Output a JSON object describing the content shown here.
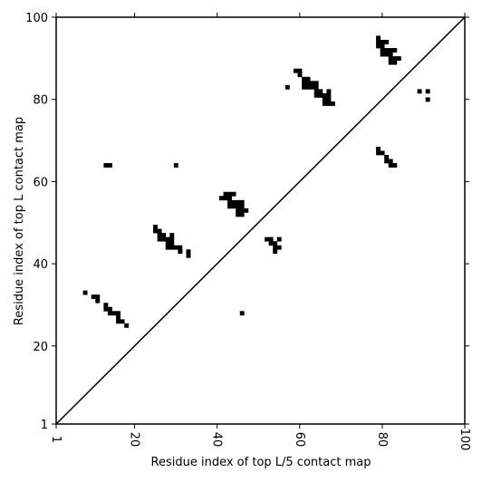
{
  "chart_data": {
    "type": "heatmap",
    "title": "",
    "xlabel": "Residue index of top L/5 contact map",
    "ylabel": "Residue index of top L contact map",
    "xlim": [
      1,
      100
    ],
    "ylim": [
      1,
      100
    ],
    "xticks": [
      1,
      20,
      40,
      60,
      80,
      100
    ],
    "yticks": [
      1,
      20,
      40,
      60,
      80,
      100
    ],
    "xtick_labels": [
      "1",
      "20",
      "40",
      "60",
      "80",
      "100"
    ],
    "ytick_labels": [
      "1",
      "20",
      "40",
      "60",
      "80",
      "100"
    ],
    "grid": false,
    "cell_color": "#000000",
    "diagonal": {
      "from": [
        1,
        1
      ],
      "to": [
        100,
        100
      ]
    },
    "cells_below_diagonal": [
      [
        8,
        33
      ],
      [
        10,
        32
      ],
      [
        11,
        32
      ],
      [
        11,
        31
      ],
      [
        13,
        30
      ],
      [
        13,
        29
      ],
      [
        14,
        29
      ],
      [
        14,
        28
      ],
      [
        15,
        28
      ],
      [
        16,
        28
      ],
      [
        16,
        27
      ],
      [
        16,
        26
      ],
      [
        17,
        26
      ],
      [
        18,
        25
      ],
      [
        25,
        49
      ],
      [
        25,
        48
      ],
      [
        26,
        48
      ],
      [
        26,
        47
      ],
      [
        26,
        46
      ],
      [
        27,
        47
      ],
      [
        27,
        46
      ],
      [
        28,
        46
      ],
      [
        28,
        45
      ],
      [
        28,
        44
      ],
      [
        29,
        47
      ],
      [
        29,
        46
      ],
      [
        29,
        45
      ],
      [
        29,
        44
      ],
      [
        30,
        44
      ],
      [
        31,
        44
      ],
      [
        31,
        43
      ],
      [
        33,
        43
      ],
      [
        33,
        42
      ],
      [
        41,
        56
      ],
      [
        42,
        57
      ],
      [
        42,
        56
      ],
      [
        43,
        57
      ],
      [
        43,
        56
      ],
      [
        43,
        55
      ],
      [
        43,
        54
      ],
      [
        44,
        57
      ],
      [
        44,
        55
      ],
      [
        44,
        54
      ],
      [
        45,
        55
      ],
      [
        45,
        54
      ],
      [
        45,
        53
      ],
      [
        45,
        52
      ],
      [
        46,
        55
      ],
      [
        46,
        54
      ],
      [
        46,
        53
      ],
      [
        46,
        52
      ],
      [
        47,
        53
      ],
      [
        52,
        46
      ],
      [
        53,
        46
      ],
      [
        53,
        45
      ],
      [
        54,
        45
      ],
      [
        54,
        44
      ],
      [
        54,
        43
      ],
      [
        55,
        46
      ],
      [
        55,
        44
      ],
      [
        46,
        28
      ],
      [
        13,
        64
      ],
      [
        14,
        64
      ],
      [
        30,
        64
      ]
    ],
    "cells_above_diagonal": [
      [
        57,
        83
      ],
      [
        59,
        87
      ],
      [
        60,
        87
      ],
      [
        60,
        86
      ],
      [
        61,
        85
      ],
      [
        61,
        84
      ],
      [
        61,
        83
      ],
      [
        62,
        85
      ],
      [
        62,
        84
      ],
      [
        62,
        83
      ],
      [
        63,
        84
      ],
      [
        63,
        83
      ],
      [
        64,
        84
      ],
      [
        64,
        83
      ],
      [
        64,
        82
      ],
      [
        64,
        81
      ],
      [
        65,
        82
      ],
      [
        65,
        81
      ],
      [
        66,
        81
      ],
      [
        66,
        80
      ],
      [
        66,
        79
      ],
      [
        67,
        82
      ],
      [
        67,
        81
      ],
      [
        67,
        80
      ],
      [
        67,
        79
      ],
      [
        68,
        79
      ],
      [
        79,
        95
      ],
      [
        79,
        94
      ],
      [
        79,
        93
      ],
      [
        80,
        94
      ],
      [
        80,
        93
      ],
      [
        80,
        92
      ],
      [
        80,
        91
      ],
      [
        81,
        94
      ],
      [
        81,
        92
      ],
      [
        81,
        91
      ],
      [
        82,
        92
      ],
      [
        82,
        91
      ],
      [
        82,
        90
      ],
      [
        82,
        89
      ],
      [
        83,
        92
      ],
      [
        83,
        90
      ],
      [
        83,
        89
      ],
      [
        84,
        90
      ],
      [
        79,
        68
      ],
      [
        79,
        67
      ],
      [
        80,
        67
      ],
      [
        81,
        66
      ],
      [
        81,
        65
      ],
      [
        82,
        65
      ],
      [
        82,
        64
      ],
      [
        83,
        64
      ],
      [
        89,
        82
      ],
      [
        91,
        82
      ],
      [
        91,
        80
      ]
    ]
  }
}
